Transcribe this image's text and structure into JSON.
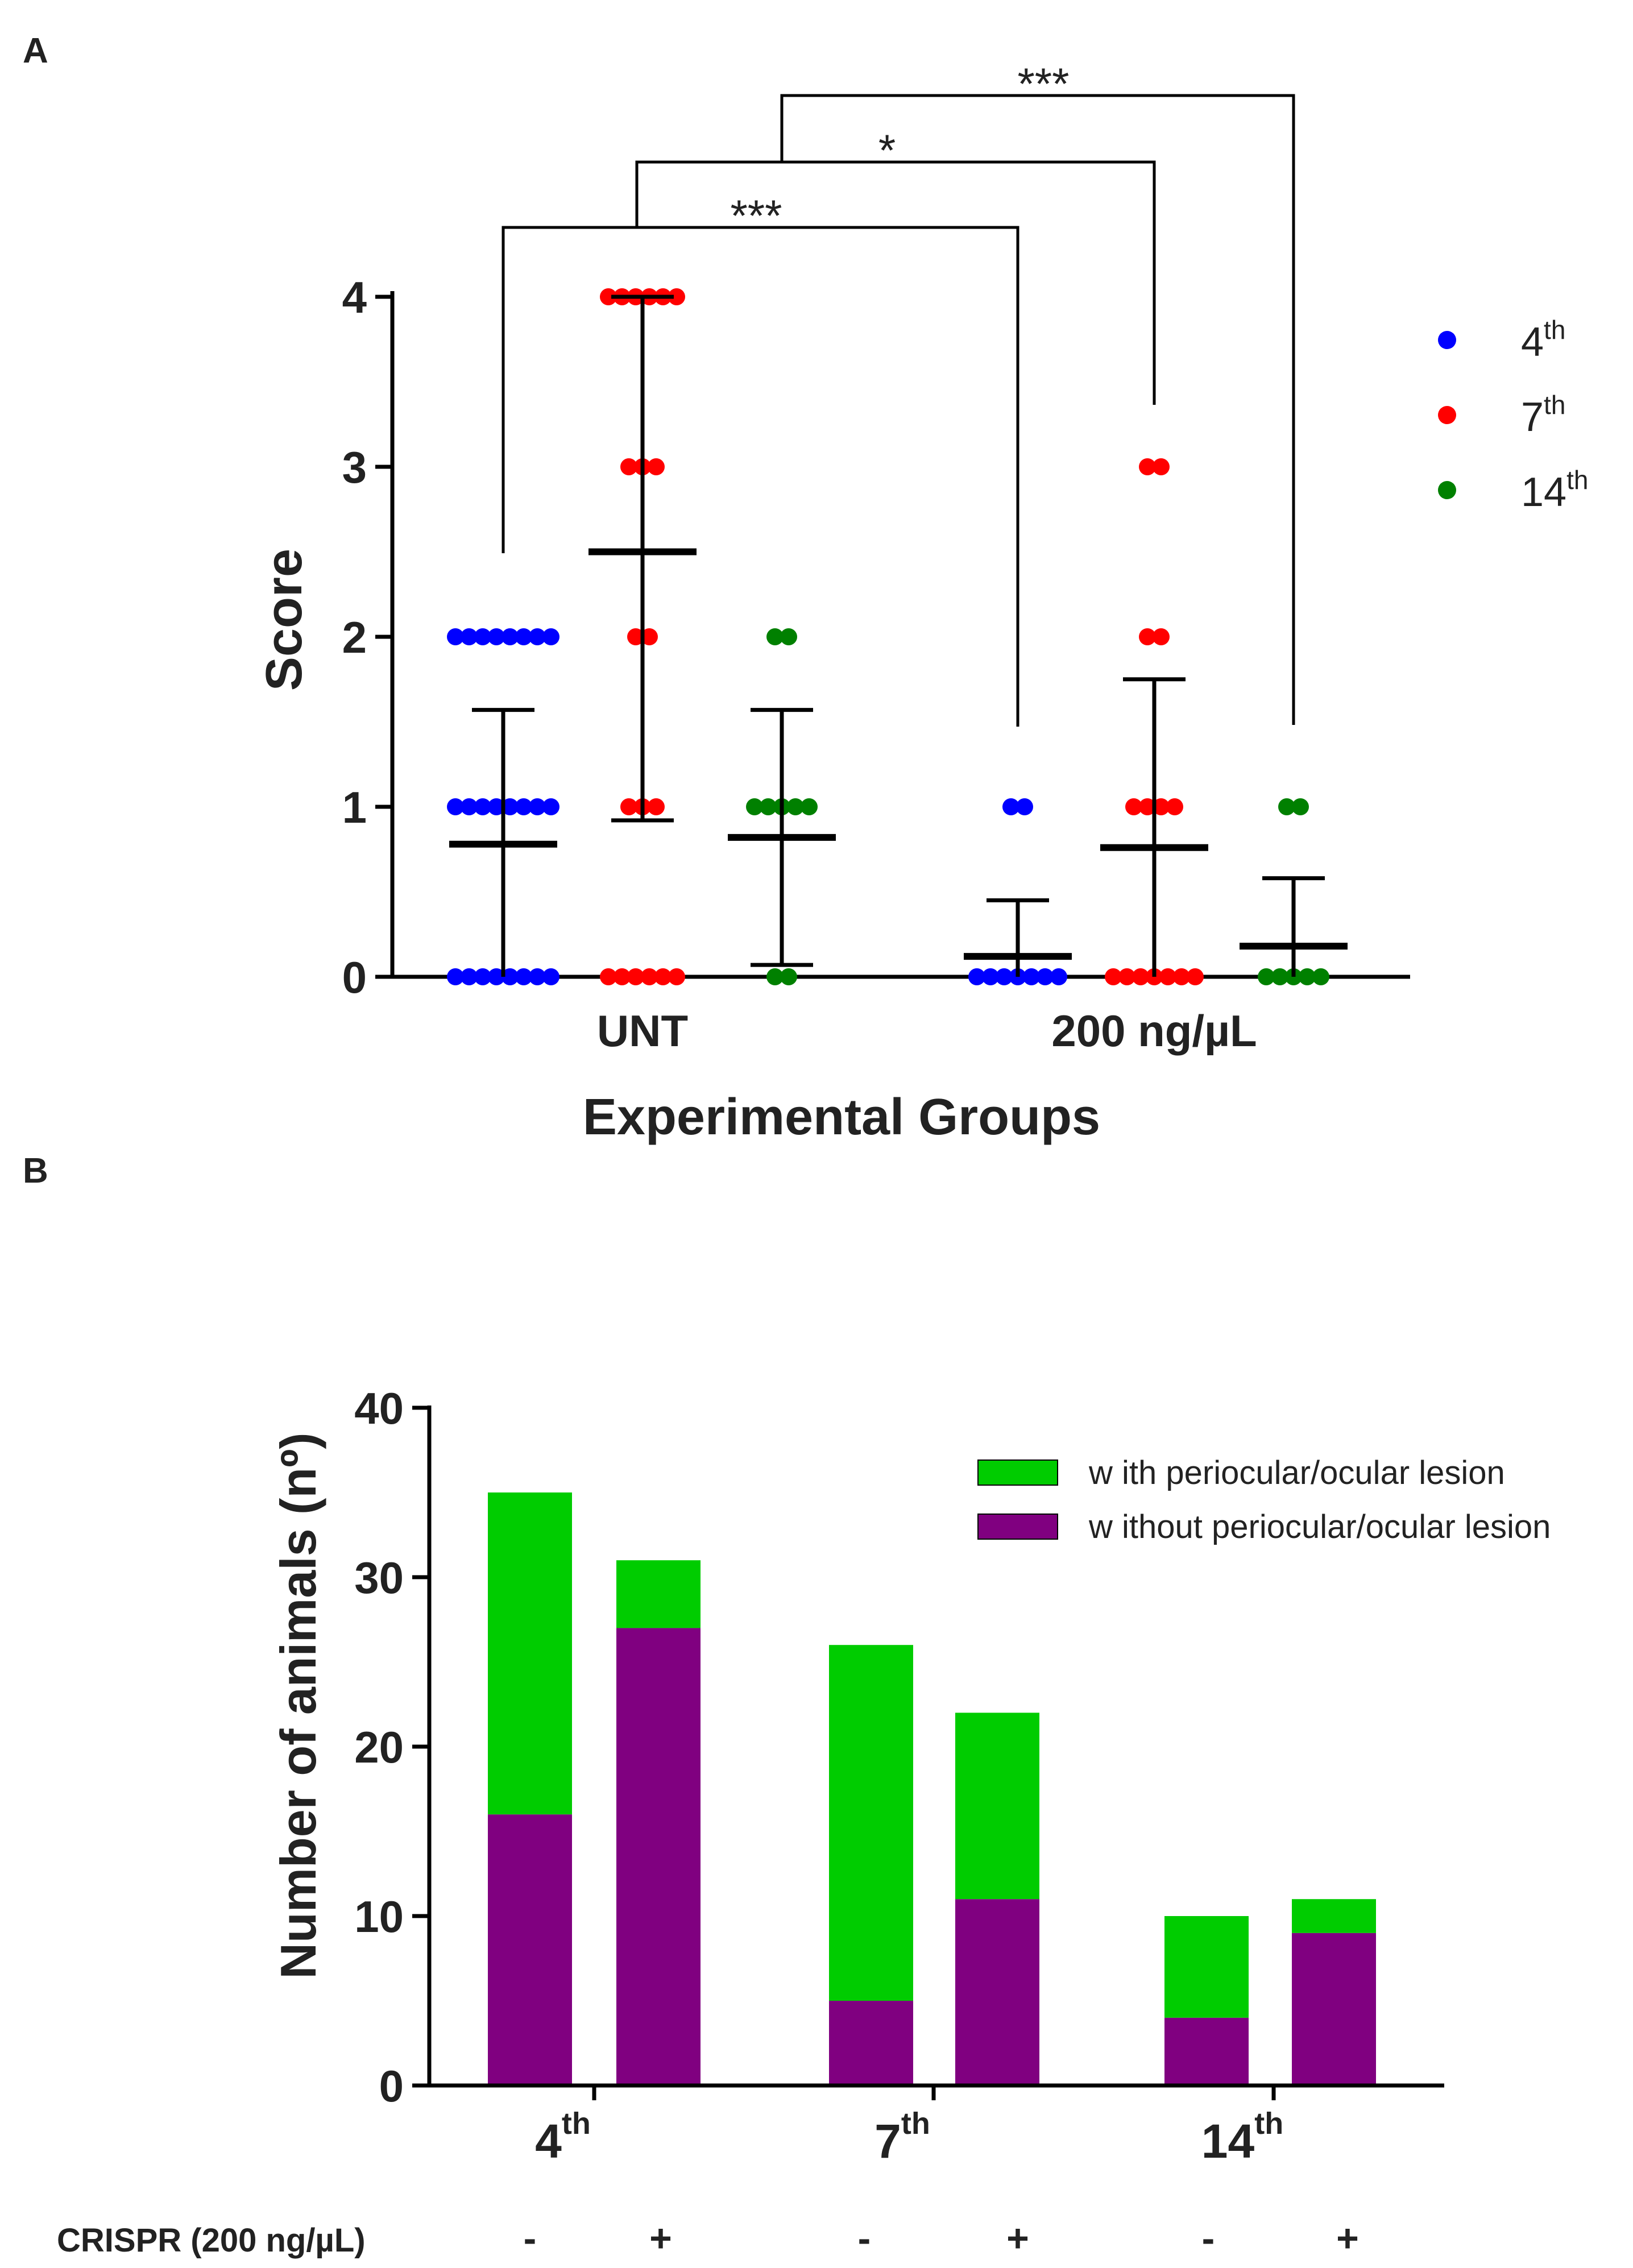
{
  "panel_labels": {
    "a": "A",
    "b": "B"
  },
  "chart_data": [
    {
      "type": "scatter",
      "title": "",
      "xlabel": "Experimental Groups",
      "ylabel": "Score",
      "ylim": [
        0,
        4
      ],
      "yticks": [
        "0",
        "1",
        "2",
        "3",
        "4"
      ],
      "groups": [
        "UNT",
        "200 ng/µL"
      ],
      "legend": [
        {
          "base": "4",
          "sup": "th",
          "color": "#0000ff"
        },
        {
          "base": "7",
          "sup": "th",
          "color": "#ff0000"
        },
        {
          "base": "14",
          "sup": "th",
          "color": "#008000"
        }
      ],
      "series": [
        {
          "group": "UNT",
          "day": "4th",
          "color": "#0000ff",
          "counts": {
            "0": 8,
            "1": 8,
            "2": 8
          },
          "mean": 0.78,
          "sd_low": 0,
          "sd_high": 1.57
        },
        {
          "group": "UNT",
          "day": "7th",
          "color": "#ff0000",
          "counts": {
            "0": 6,
            "1": 3,
            "2": 2,
            "3": 3,
            "4": 6
          },
          "mean": 2.5,
          "sd_low": 0.92,
          "sd_high": 4.0
        },
        {
          "group": "UNT",
          "day": "14th",
          "color": "#008000",
          "counts": {
            "0": 2,
            "1": 5,
            "2": 2
          },
          "mean": 0.82,
          "sd_low": 0.07,
          "sd_high": 1.57
        },
        {
          "group": "200 ng/µL",
          "day": "4th",
          "color": "#0000ff",
          "counts": {
            "0": 7,
            "1": 2
          },
          "mean": 0.12,
          "sd_low": 0,
          "sd_high": 0.45
        },
        {
          "group": "200 ng/µL",
          "day": "7th",
          "color": "#ff0000",
          "counts": {
            "0": 7,
            "1": 4,
            "2": 2,
            "3": 2
          },
          "mean": 0.76,
          "sd_low": 0,
          "sd_high": 1.75
        },
        {
          "group": "200 ng/µL",
          "day": "14th",
          "color": "#008000",
          "counts": {
            "0": 5,
            "1": 2
          },
          "mean": 0.18,
          "sd_low": 0,
          "sd_high": 0.58
        }
      ],
      "significance": [
        {
          "from": 0,
          "to": 3,
          "label": "***"
        },
        {
          "from": 1,
          "to": 4,
          "label": "*"
        },
        {
          "from": 2,
          "to": 5,
          "label": "***"
        }
      ]
    },
    {
      "type": "bar",
      "stacked": true,
      "ylabel": "Number of animals (nº)",
      "ylim": [
        0,
        40
      ],
      "yticks": [
        "0",
        "10",
        "20",
        "30",
        "40"
      ],
      "groups": [
        {
          "base": "4",
          "sup": "th"
        },
        {
          "base": "7",
          "sup": "th"
        },
        {
          "base": "14",
          "sup": "th"
        }
      ],
      "crispr_label": "CRISPR (200 ng/µL)",
      "crispr_signs": [
        "-",
        "+",
        "-",
        "+",
        "-",
        "+"
      ],
      "series": [
        {
          "name": "without periocular/ocular lesion",
          "color": "#800080",
          "values": [
            16,
            27,
            5,
            11,
            4,
            9
          ]
        },
        {
          "name": "with periocular/ocular lesion",
          "color": "#00cc00",
          "values": [
            19,
            4,
            21,
            11,
            6,
            2
          ]
        }
      ],
      "legend": [
        {
          "label": "w ith periocular/ocular lesion",
          "color": "#00cc00"
        },
        {
          "label": "w ithout periocular/ocular lesion",
          "color": "#800080"
        }
      ]
    }
  ]
}
